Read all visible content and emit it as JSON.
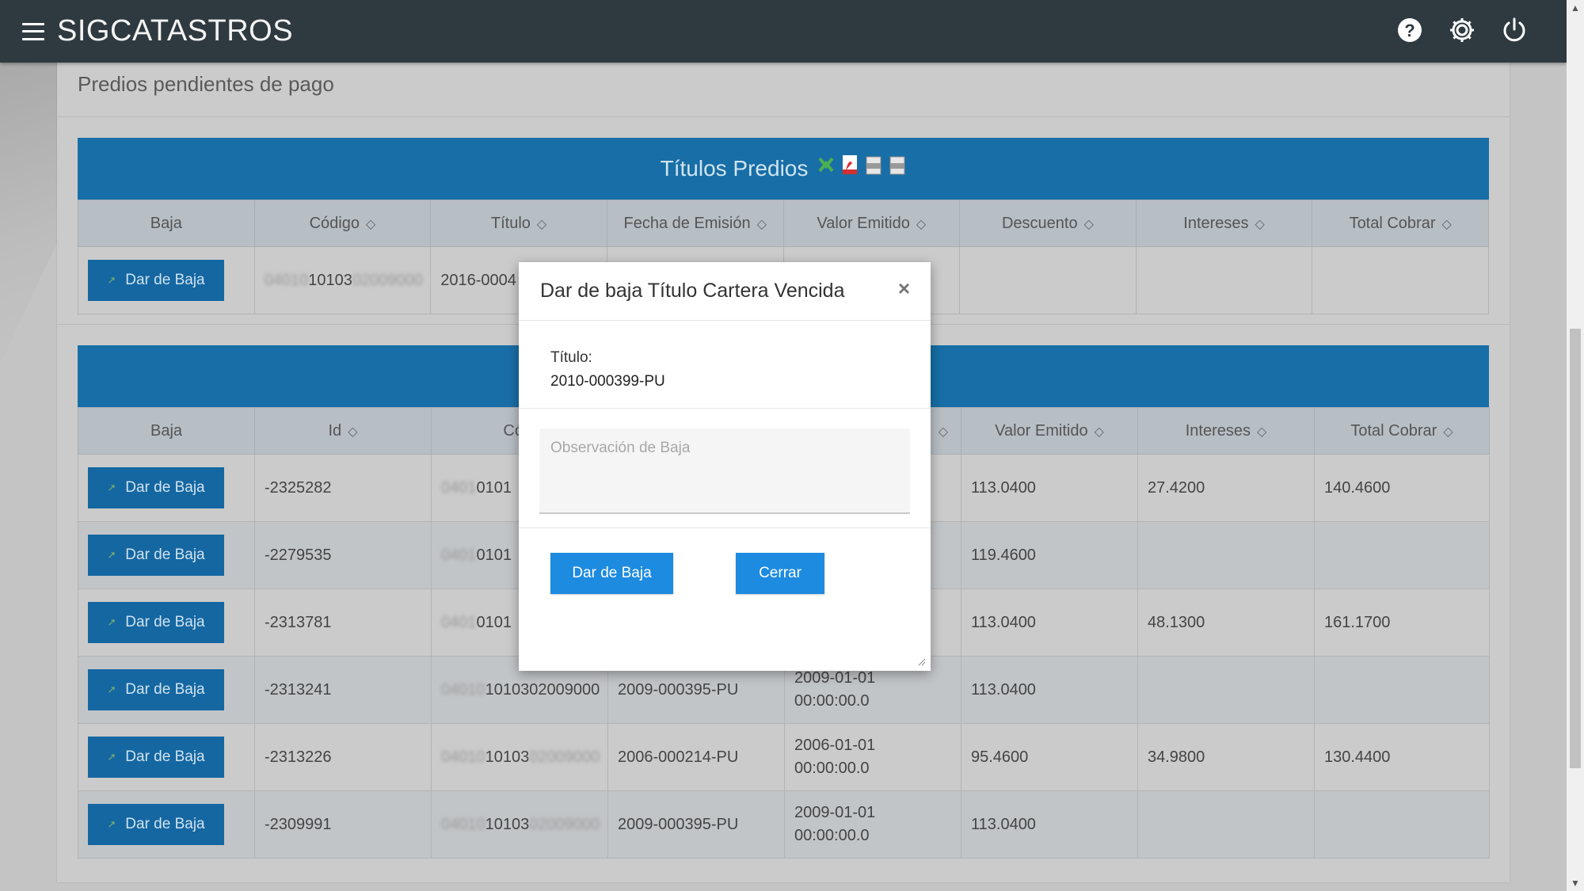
{
  "app": {
    "title": "SIGCATASTROS"
  },
  "icons": {
    "help": "help-icon",
    "settings": "gear-icon",
    "power": "power-icon",
    "menu": "hamburger-icon"
  },
  "page": {
    "title": "Predios pendientes de pago"
  },
  "titulos": {
    "title": "Títulos Predios",
    "columns": [
      "Baja",
      "Código",
      "Título",
      "Fecha de Emisión",
      "Valor Emitido",
      "Descuento",
      "Intereses",
      "Total Cobrar"
    ],
    "rows": [
      {
        "button": "Dar de Baja",
        "code_blur": "04010",
        "code": "10103",
        "code_blur2": "02009000",
        "titulo": "2016-0004",
        "fecha": "",
        "valor": "",
        "descuento": "",
        "intereses": "",
        "total": ""
      }
    ]
  },
  "cartera": {
    "columns": [
      "Baja",
      "Id",
      "Códi",
      "",
      "Valor Emitido",
      "Intereses",
      "Total Cobrar"
    ],
    "rows": [
      {
        "button": "Dar de Baja",
        "id": "-2325282",
        "code_blur": "0401",
        "code": "0101",
        "code_blur2": "",
        "titulo": "",
        "fecha1": "",
        "fecha2": "",
        "valor": "113.0400",
        "intereses": "27.4200",
        "total": "140.4600"
      },
      {
        "button": "Dar de Baja",
        "id": "-2279535",
        "code_blur": "0401",
        "code": "0101",
        "code_blur2": "",
        "titulo": "",
        "fecha1": "",
        "fecha2": "",
        "valor": "119.4600",
        "intereses": "",
        "total": ""
      },
      {
        "button": "Dar de Baja",
        "id": "-2313781",
        "code_blur": "0401",
        "code": "0101",
        "code_blur2": "",
        "titulo": "",
        "fecha1": "",
        "fecha2": "",
        "valor": "113.0400",
        "intereses": "48.1300",
        "total": "161.1700"
      },
      {
        "button": "Dar de Baja",
        "id": "-2313241",
        "code_blur": "04010",
        "code": "1010302009000",
        "code_blur2": "",
        "titulo": "2009-000395-PU",
        "fecha1": "2009-01-01",
        "fecha2": "00:00:00.0",
        "valor": "113.0400",
        "intereses": "",
        "total": ""
      },
      {
        "button": "Dar de Baja",
        "id": "-2313226",
        "code_blur": "04010",
        "code": "10103",
        "code_blur2": "02009000",
        "titulo": "2006-000214-PU",
        "fecha1": "2006-01-01",
        "fecha2": "00:00:00.0",
        "valor": "95.4600",
        "intereses": "34.9800",
        "total": "130.4400"
      },
      {
        "button": "Dar de Baja",
        "id": "-2309991",
        "code_blur": "04010",
        "code": "10103",
        "code_blur2": "02009000",
        "titulo": "2009-000395-PU",
        "fecha1": "2009-01-01",
        "fecha2": "00:00:00.0",
        "valor": "113.0400",
        "intereses": "",
        "total": ""
      }
    ]
  },
  "modal": {
    "title": "Dar de baja Título Cartera Vencida",
    "close": "×",
    "titulo_label": "Título:",
    "titulo_value": "2010-000399-PU",
    "observacion_placeholder": "Observación de Baja",
    "btn_baja": "Dar de Baja",
    "btn_cerrar": "Cerrar"
  },
  "colors": {
    "topbar": "#2f3a40",
    "header_blue": "#186ea6",
    "button_blue": "#1567a2",
    "modal_button": "#1d8be0"
  }
}
